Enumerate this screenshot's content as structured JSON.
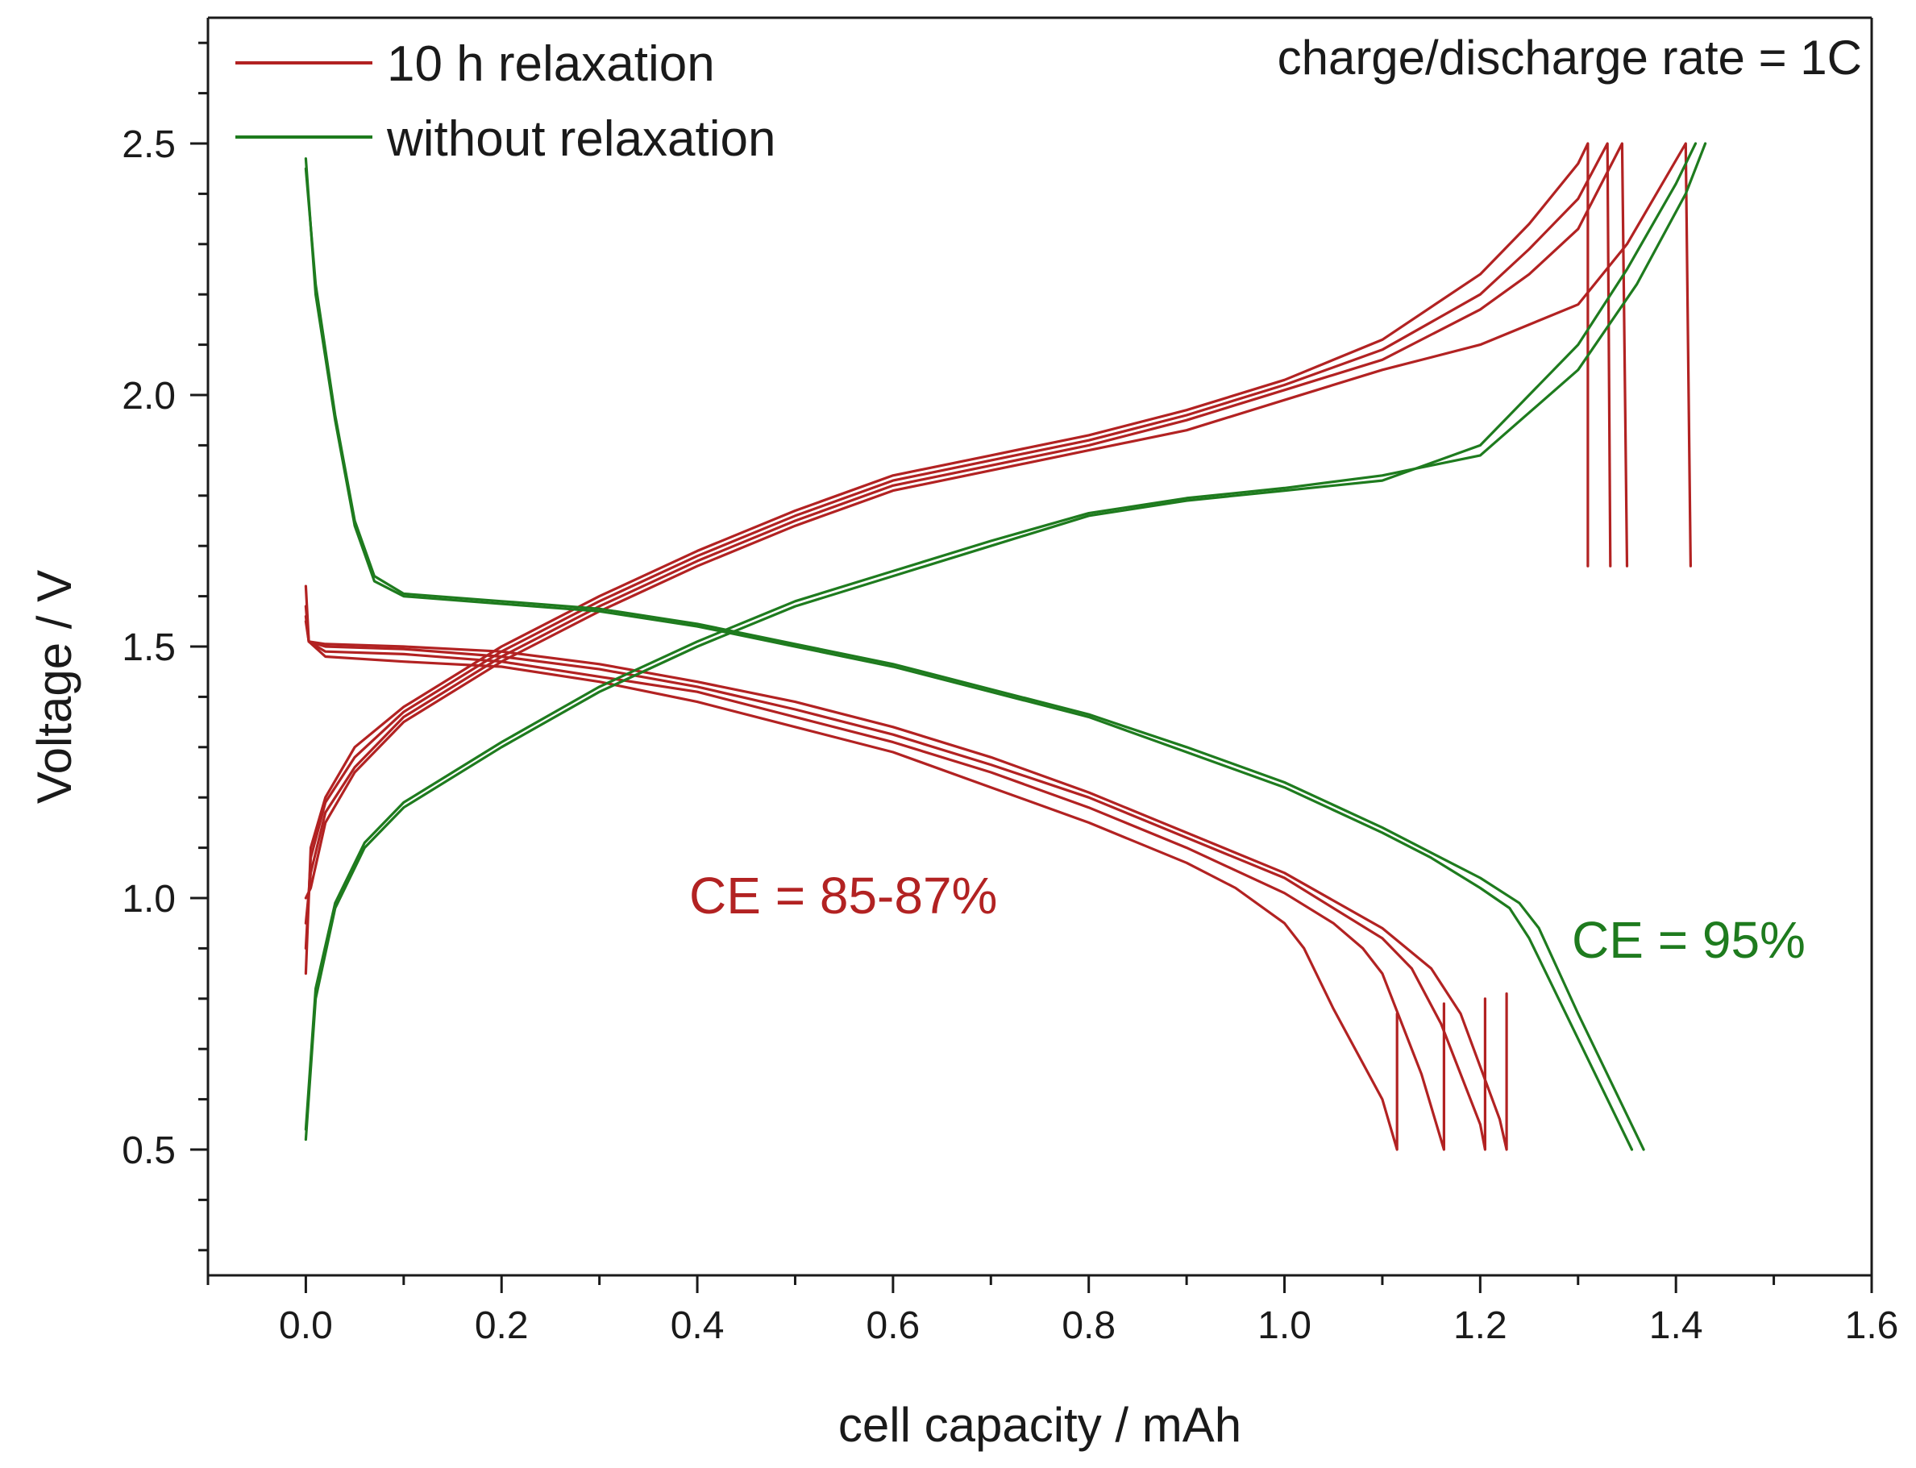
{
  "chart_data": {
    "type": "line",
    "title": "",
    "xlabel": "cell capacity / mAh",
    "ylabel": "Voltage / V",
    "xlim": [
      -0.1,
      1.6
    ],
    "ylim": [
      0.25,
      2.75
    ],
    "x_ticks": [
      "0.0",
      "0.2",
      "0.4",
      "0.6",
      "0.8",
      "1.0",
      "1.2",
      "1.4",
      "1.6"
    ],
    "y_ticks": [
      "0.5",
      "1.0",
      "1.5",
      "2.0",
      "2.5"
    ],
    "grid": false,
    "legend_position": "top-left",
    "legend": [
      {
        "label": "10 h relaxation",
        "color": "#b22222"
      },
      {
        "label": "without relaxation",
        "color": "#1e7b1e"
      }
    ],
    "annotations": {
      "rate": "charge/discharge rate = 1C",
      "ce_relax": "CE = 85-87%",
      "ce_no_relax": "CE = 95%"
    },
    "series": [
      {
        "group": "10 h relaxation",
        "color": "#b22222",
        "kind": "discharge",
        "x": [
          0,
          0.003,
          0.02,
          0.1,
          0.2,
          0.3,
          0.4,
          0.5,
          0.6,
          0.7,
          0.8,
          0.9,
          0.95,
          1.0,
          1.02,
          1.05,
          1.1,
          1.115,
          1.115
        ],
        "y": [
          1.62,
          1.51,
          1.48,
          1.47,
          1.46,
          1.43,
          1.39,
          1.34,
          1.29,
          1.22,
          1.15,
          1.07,
          1.02,
          0.95,
          0.9,
          0.78,
          0.6,
          0.5,
          0.77
        ]
      },
      {
        "group": "10 h relaxation",
        "color": "#b22222",
        "kind": "discharge",
        "x": [
          0,
          0.003,
          0.02,
          0.1,
          0.2,
          0.3,
          0.4,
          0.5,
          0.6,
          0.7,
          0.8,
          0.9,
          1.0,
          1.05,
          1.08,
          1.1,
          1.14,
          1.163,
          1.163
        ],
        "y": [
          1.58,
          1.51,
          1.49,
          1.485,
          1.47,
          1.44,
          1.41,
          1.36,
          1.31,
          1.25,
          1.18,
          1.1,
          1.01,
          0.95,
          0.9,
          0.85,
          0.65,
          0.5,
          0.79
        ]
      },
      {
        "group": "10 h relaxation",
        "color": "#b22222",
        "kind": "discharge",
        "x": [
          0,
          0.003,
          0.02,
          0.1,
          0.2,
          0.3,
          0.4,
          0.5,
          0.6,
          0.7,
          0.8,
          0.9,
          1.0,
          1.05,
          1.1,
          1.13,
          1.16,
          1.2,
          1.205,
          1.205
        ],
        "y": [
          1.56,
          1.51,
          1.5,
          1.495,
          1.48,
          1.455,
          1.42,
          1.375,
          1.325,
          1.265,
          1.2,
          1.12,
          1.04,
          0.98,
          0.92,
          0.86,
          0.75,
          0.55,
          0.5,
          0.8
        ]
      },
      {
        "group": "10 h relaxation",
        "color": "#b22222",
        "kind": "discharge",
        "x": [
          0,
          0.003,
          0.02,
          0.1,
          0.2,
          0.3,
          0.4,
          0.5,
          0.6,
          0.7,
          0.8,
          0.9,
          1.0,
          1.05,
          1.1,
          1.15,
          1.18,
          1.22,
          1.227,
          1.227
        ],
        "y": [
          1.55,
          1.51,
          1.505,
          1.5,
          1.49,
          1.465,
          1.43,
          1.39,
          1.34,
          1.28,
          1.21,
          1.13,
          1.05,
          0.995,
          0.94,
          0.86,
          0.77,
          0.56,
          0.5,
          0.81
        ]
      },
      {
        "group": "10 h relaxation",
        "color": "#b22222",
        "kind": "charge",
        "x": [
          0,
          0.005,
          0.02,
          0.05,
          0.1,
          0.2,
          0.3,
          0.4,
          0.5,
          0.6,
          0.7,
          0.8,
          0.9,
          1.0,
          1.1,
          1.2,
          1.25,
          1.3,
          1.31,
          1.31
        ],
        "y": [
          0.85,
          1.1,
          1.2,
          1.3,
          1.38,
          1.5,
          1.6,
          1.69,
          1.77,
          1.84,
          1.88,
          1.92,
          1.97,
          2.03,
          2.11,
          2.24,
          2.34,
          2.46,
          2.5,
          1.66
        ]
      },
      {
        "group": "10 h relaxation",
        "color": "#b22222",
        "kind": "charge",
        "x": [
          0,
          0.005,
          0.02,
          0.05,
          0.1,
          0.2,
          0.3,
          0.4,
          0.5,
          0.6,
          0.7,
          0.8,
          0.9,
          1.0,
          1.1,
          1.2,
          1.25,
          1.3,
          1.33,
          1.333
        ],
        "y": [
          0.9,
          1.08,
          1.19,
          1.28,
          1.37,
          1.49,
          1.59,
          1.68,
          1.76,
          1.83,
          1.87,
          1.91,
          1.96,
          2.02,
          2.09,
          2.2,
          2.29,
          2.39,
          2.5,
          1.66
        ]
      },
      {
        "group": "10 h relaxation",
        "color": "#b22222",
        "kind": "charge",
        "x": [
          0,
          0.005,
          0.02,
          0.05,
          0.1,
          0.2,
          0.3,
          0.4,
          0.5,
          0.6,
          0.7,
          0.8,
          0.9,
          1.0,
          1.1,
          1.2,
          1.25,
          1.3,
          1.345,
          1.35
        ],
        "y": [
          0.95,
          1.05,
          1.17,
          1.26,
          1.36,
          1.48,
          1.58,
          1.67,
          1.75,
          1.82,
          1.86,
          1.9,
          1.95,
          2.01,
          2.07,
          2.17,
          2.24,
          2.33,
          2.5,
          1.66
        ]
      },
      {
        "group": "10 h relaxation",
        "color": "#b22222",
        "kind": "charge",
        "x": [
          0,
          0.005,
          0.02,
          0.05,
          0.1,
          0.2,
          0.3,
          0.4,
          0.5,
          0.6,
          0.7,
          0.8,
          0.9,
          1.0,
          1.1,
          1.2,
          1.3,
          1.35,
          1.41,
          1.415
        ],
        "y": [
          1.0,
          1.02,
          1.15,
          1.25,
          1.35,
          1.47,
          1.57,
          1.66,
          1.74,
          1.81,
          1.85,
          1.89,
          1.93,
          1.99,
          2.05,
          2.1,
          2.18,
          2.3,
          2.5,
          1.66
        ]
      },
      {
        "group": "without relaxation",
        "color": "#1e7b1e",
        "kind": "discharge",
        "x": [
          0,
          0.01,
          0.03,
          0.05,
          0.07,
          0.1,
          0.2,
          0.3,
          0.4,
          0.5,
          0.6,
          0.7,
          0.8,
          0.9,
          1.0,
          1.1,
          1.15,
          1.2,
          1.23,
          1.25,
          1.3,
          1.355
        ],
        "y": [
          2.47,
          2.2,
          1.95,
          1.74,
          1.63,
          1.6,
          1.585,
          1.57,
          1.54,
          1.5,
          1.46,
          1.41,
          1.36,
          1.29,
          1.22,
          1.13,
          1.08,
          1.02,
          0.98,
          0.92,
          0.72,
          0.5
        ]
      },
      {
        "group": "without relaxation",
        "color": "#1e7b1e",
        "kind": "discharge",
        "x": [
          0,
          0.01,
          0.03,
          0.05,
          0.07,
          0.1,
          0.2,
          0.3,
          0.4,
          0.5,
          0.6,
          0.7,
          0.8,
          0.9,
          1.0,
          1.1,
          1.15,
          1.2,
          1.24,
          1.26,
          1.3,
          1.367
        ],
        "y": [
          2.45,
          2.22,
          1.96,
          1.75,
          1.64,
          1.605,
          1.59,
          1.575,
          1.545,
          1.505,
          1.465,
          1.415,
          1.365,
          1.3,
          1.23,
          1.14,
          1.09,
          1.04,
          0.99,
          0.94,
          0.77,
          0.5
        ]
      },
      {
        "group": "without relaxation",
        "color": "#1e7b1e",
        "kind": "charge",
        "x": [
          0,
          0.01,
          0.03,
          0.06,
          0.1,
          0.2,
          0.3,
          0.4,
          0.5,
          0.6,
          0.7,
          0.8,
          0.9,
          1.0,
          1.1,
          1.2,
          1.3,
          1.35,
          1.4,
          1.42
        ],
        "y": [
          0.52,
          0.8,
          0.98,
          1.1,
          1.18,
          1.3,
          1.41,
          1.5,
          1.58,
          1.64,
          1.7,
          1.76,
          1.79,
          1.81,
          1.83,
          1.9,
          2.1,
          2.25,
          2.42,
          2.5
        ]
      },
      {
        "group": "without relaxation",
        "color": "#1e7b1e",
        "kind": "charge",
        "x": [
          0,
          0.01,
          0.03,
          0.06,
          0.1,
          0.2,
          0.3,
          0.4,
          0.5,
          0.6,
          0.7,
          0.8,
          0.9,
          1.0,
          1.1,
          1.2,
          1.3,
          1.36,
          1.41,
          1.43
        ],
        "y": [
          0.54,
          0.82,
          0.99,
          1.11,
          1.19,
          1.31,
          1.42,
          1.51,
          1.59,
          1.65,
          1.71,
          1.765,
          1.795,
          1.815,
          1.84,
          1.88,
          2.05,
          2.22,
          2.4,
          2.5
        ]
      }
    ]
  }
}
